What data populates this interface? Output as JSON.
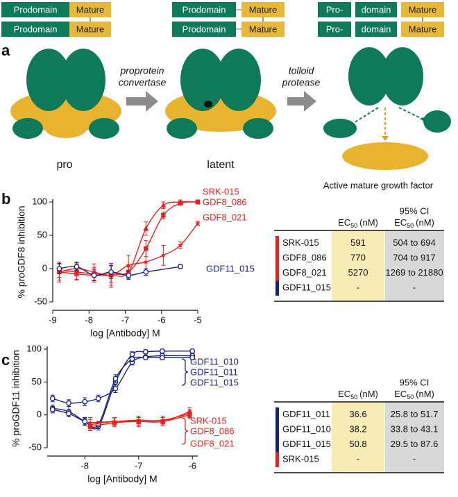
{
  "panel_a": {
    "label": "a",
    "stages": [
      {
        "rows": [
          [
            "Prodomain",
            "Mature"
          ],
          [
            "Prodomain",
            "Mature"
          ]
        ],
        "caption": "pro"
      },
      {
        "rows": [
          [
            "Prodomain",
            "Mature"
          ],
          [
            "Prodomain",
            "Mature"
          ]
        ],
        "caption": "latent"
      },
      {
        "rows": [
          [
            "Pro-",
            "domain",
            "Mature"
          ],
          [
            "Pro-",
            "domain",
            "Mature"
          ]
        ],
        "caption": "Active mature growth factor"
      }
    ],
    "steps": [
      {
        "text": [
          "proprotein",
          "convertase"
        ]
      },
      {
        "text": [
          "tolloid",
          "protease"
        ]
      }
    ]
  },
  "chart_data": [
    {
      "type": "scatter",
      "panel_label": "b",
      "xlabel": "log [Antibody] M",
      "ylabel": "% proGDF8 inhibition",
      "xlim": [
        -9,
        -5
      ],
      "xticks": [
        -9,
        -8,
        -7,
        -6,
        -5
      ],
      "ylim": [
        -50,
        100
      ],
      "yticks": [
        -50,
        0,
        50,
        100
      ],
      "series": [
        {
          "name": "SRK-015",
          "color": "#e8201e",
          "marker": "triangle",
          "x": [
            -8.82,
            -8.34,
            -7.86,
            -7.39,
            -6.91,
            -6.43,
            -5.95,
            -5.48,
            -5
          ],
          "values": [
            -5,
            -8,
            -10,
            -10,
            -5,
            60,
            95,
            100,
            100
          ],
          "errors": [
            12,
            8,
            10,
            15,
            8,
            10,
            5,
            3,
            3
          ]
        },
        {
          "name": "GDF8_086",
          "color": "#e8201e",
          "marker": "square",
          "x": [
            -8.82,
            -8.34,
            -7.86,
            -7.39,
            -6.91,
            -6.43,
            -5.95,
            -5.48,
            -5
          ],
          "values": [
            -3,
            -5,
            -8,
            -8,
            -5,
            30,
            80,
            98,
            100
          ],
          "errors": [
            10,
            12,
            10,
            12,
            10,
            12,
            5,
            3,
            3
          ]
        },
        {
          "name": "GDF8_021",
          "color": "#e8201e",
          "marker": "star",
          "x": [
            -8.82,
            -8.34,
            -7.86,
            -7.39,
            -6.91,
            -6.43,
            -5.95,
            -5.48,
            -5
          ],
          "values": [
            -5,
            0,
            -5,
            -10,
            5,
            10,
            20,
            35,
            68
          ],
          "errors": [
            15,
            10,
            12,
            18,
            15,
            20,
            15,
            5,
            3
          ]
        },
        {
          "name": "GDF11_015",
          "color": "#1a237e",
          "marker": "circle",
          "x": [
            -8.82,
            -8.34,
            -7.86,
            -7.39,
            -6.91,
            -6.43,
            -5.48
          ],
          "values": [
            0,
            3,
            -10,
            -5,
            -10,
            -5,
            3
          ],
          "errors": [
            8,
            6,
            8,
            10,
            6,
            5,
            3
          ]
        }
      ]
    },
    {
      "type": "scatter",
      "panel_label": "c",
      "xlabel": "log [Antibody] M",
      "ylabel": "% proGDF11 inhibition",
      "xlim": [
        -8.7,
        -5.9
      ],
      "xticks": [
        -8,
        -7,
        -6
      ],
      "ylim": [
        -50,
        100
      ],
      "yticks": [
        -50,
        0,
        50,
        100
      ],
      "series": [
        {
          "name": "GDF11_010",
          "color": "#1a237e",
          "marker": "circle",
          "x": [
            -8.6,
            -8.3,
            -8.0,
            -7.75,
            -7.43,
            -7.12,
            -6.87,
            -6.56,
            -6.0
          ],
          "values": [
            10,
            5,
            -10,
            -18,
            50,
            92,
            96,
            97,
            97
          ],
          "errors": [
            5,
            8,
            6,
            5,
            8,
            4,
            3,
            3,
            3
          ]
        },
        {
          "name": "GDF11_011",
          "color": "#1a237e",
          "marker": "circle",
          "x": [
            -8.6,
            -8.3,
            -8.0,
            -7.75,
            -7.43,
            -7.12,
            -6.87,
            -6.56,
            -6.0
          ],
          "values": [
            25,
            18,
            20,
            25,
            40,
            80,
            88,
            90,
            90
          ],
          "errors": [
            5,
            5,
            6,
            5,
            6,
            4,
            3,
            3,
            3
          ]
        },
        {
          "name": "GDF11_015",
          "color": "#1a237e",
          "marker": "circle",
          "x": [
            -8.6,
            -8.3,
            -8.0,
            -7.75,
            -7.43,
            -7.12,
            -6.87,
            -6.56,
            -6.0
          ],
          "values": [
            8,
            2,
            -10,
            -15,
            55,
            85,
            87,
            87,
            87
          ],
          "errors": [
            5,
            5,
            5,
            5,
            6,
            4,
            3,
            3,
            3
          ]
        },
        {
          "name": "SRK-015",
          "color": "#e8201e",
          "marker": "triangle",
          "x": [
            -7.9,
            -7.45,
            -7.0,
            -6.55,
            -6.05
          ],
          "values": [
            -15,
            -10,
            -10,
            -10,
            5
          ],
          "errors": [
            8,
            6,
            8,
            6,
            6
          ]
        },
        {
          "name": "GDF8_086",
          "color": "#e8201e",
          "marker": "square",
          "x": [
            -7.9,
            -7.45,
            -7.0,
            -6.55,
            -6.05
          ],
          "values": [
            -18,
            -12,
            -10,
            -10,
            0
          ],
          "errors": [
            6,
            6,
            6,
            6,
            6
          ]
        },
        {
          "name": "GDF8_021",
          "color": "#e8201e",
          "marker": "star",
          "x": [
            -7.9,
            -7.45,
            -7.0,
            -6.55,
            -6.05
          ],
          "values": [
            -12,
            -10,
            -8,
            -8,
            2
          ],
          "errors": [
            8,
            6,
            6,
            6,
            6
          ]
        }
      ]
    }
  ],
  "tables": [
    {
      "ec50_header": {
        "main": "EC",
        "sub": "50",
        "unit": "(nM)"
      },
      "ci_header": "95% CI",
      "rows": [
        {
          "name": "SRK-015",
          "color": "#e8201e",
          "ec50": 591,
          "ci": "504 to 694"
        },
        {
          "name": "GDF8_086",
          "color": "#e8201e",
          "ec50": 770,
          "ci": "704 to 917"
        },
        {
          "name": "GDF8_021",
          "color": "#e8201e",
          "ec50": 5270,
          "ci": "1269 to 21880"
        },
        {
          "name": "GDF11_015",
          "color": "#1a237e",
          "ec50": "-",
          "ci": "-"
        }
      ]
    },
    {
      "ec50_header": {
        "main": "EC",
        "sub": "50",
        "unit": "(nM)"
      },
      "ci_header": "95% CI",
      "rows": [
        {
          "name": "GDF11_011",
          "color": "#1a237e",
          "ec50": 36.6,
          "ci": "25.8 to 51.7"
        },
        {
          "name": "GDF11_010",
          "color": "#1a237e",
          "ec50": 38.2,
          "ci": "33.8 to 43.1"
        },
        {
          "name": "GDF11_015",
          "color": "#1a237e",
          "ec50": 50.8,
          "ci": "29.5 to 87.6"
        },
        {
          "name": "SRK-015",
          "color": "#e8201e",
          "ec50": "-",
          "ci": "-"
        }
      ]
    }
  ]
}
